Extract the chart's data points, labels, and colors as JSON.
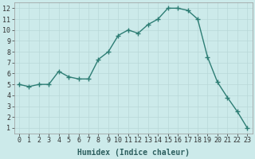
{
  "x": [
    0,
    1,
    2,
    3,
    4,
    5,
    6,
    7,
    8,
    9,
    10,
    11,
    12,
    13,
    14,
    15,
    16,
    17,
    18,
    19,
    20,
    21,
    22,
    23
  ],
  "y": [
    5.0,
    4.8,
    5.0,
    5.0,
    6.2,
    5.7,
    5.5,
    5.5,
    7.3,
    8.0,
    9.5,
    10.0,
    9.7,
    10.5,
    11.0,
    12.0,
    12.0,
    11.8,
    11.0,
    7.5,
    5.2,
    3.8,
    2.5,
    1.0
  ],
  "line_color": "#2d7d74",
  "marker": "+",
  "marker_size": 4,
  "bg_color": "#cceaea",
  "grid_color": "#b8d8d8",
  "xlabel": "Humidex (Indice chaleur)",
  "xlim": [
    -0.5,
    23.5
  ],
  "ylim": [
    0.5,
    12.5
  ],
  "yticks": [
    1,
    2,
    3,
    4,
    5,
    6,
    7,
    8,
    9,
    10,
    11,
    12
  ],
  "xticks": [
    0,
    1,
    2,
    3,
    4,
    5,
    6,
    7,
    8,
    9,
    10,
    11,
    12,
    13,
    14,
    15,
    16,
    17,
    18,
    19,
    20,
    21,
    22,
    23
  ],
  "tick_font_size": 6,
  "label_font_size": 7,
  "lw": 1.0
}
